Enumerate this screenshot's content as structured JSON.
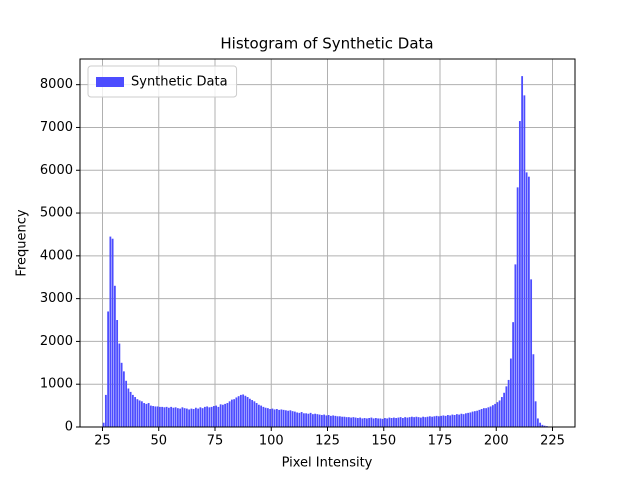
{
  "chart_data": {
    "type": "histogram",
    "title": "Histogram of Synthetic Data",
    "xlabel": "Pixel Intensity",
    "ylabel": "Frequency",
    "bins": [
      25,
      26,
      27,
      28,
      29,
      30,
      31,
      32,
      33,
      34,
      35,
      36,
      37,
      38,
      39,
      40,
      41,
      42,
      43,
      44,
      45,
      46,
      47,
      48,
      49,
      50,
      51,
      52,
      53,
      54,
      55,
      56,
      57,
      58,
      59,
      60,
      61,
      62,
      63,
      64,
      65,
      66,
      67,
      68,
      69,
      70,
      71,
      72,
      73,
      74,
      75,
      76,
      77,
      78,
      79,
      80,
      81,
      82,
      83,
      84,
      85,
      86,
      87,
      88,
      89,
      90,
      91,
      92,
      93,
      94,
      95,
      96,
      97,
      98,
      99,
      100,
      101,
      102,
      103,
      104,
      105,
      106,
      107,
      108,
      109,
      110,
      111,
      112,
      113,
      114,
      115,
      116,
      117,
      118,
      119,
      120,
      121,
      122,
      123,
      124,
      125,
      126,
      127,
      128,
      129,
      130,
      131,
      132,
      133,
      134,
      135,
      136,
      137,
      138,
      139,
      140,
      141,
      142,
      143,
      144,
      145,
      146,
      147,
      148,
      149,
      150,
      151,
      152,
      153,
      154,
      155,
      156,
      157,
      158,
      159,
      160,
      161,
      162,
      163,
      164,
      165,
      166,
      167,
      168,
      169,
      170,
      171,
      172,
      173,
      174,
      175,
      176,
      177,
      178,
      179,
      180,
      181,
      182,
      183,
      184,
      185,
      186,
      187,
      188,
      189,
      190,
      191,
      192,
      193,
      194,
      195,
      196,
      197,
      198,
      199,
      200,
      201,
      202,
      203,
      204,
      205,
      206,
      207,
      208,
      209,
      210,
      211,
      212,
      213,
      214,
      215,
      216,
      217,
      218,
      219,
      220,
      221,
      222,
      223,
      224,
      225,
      226,
      227,
      228
    ],
    "series": [
      {
        "name": "Synthetic Data",
        "color": "#4d4dff",
        "values": [
          100,
          750,
          2700,
          4450,
          4400,
          3300,
          2500,
          1950,
          1500,
          1300,
          1080,
          900,
          820,
          750,
          700,
          650,
          620,
          600,
          560,
          540,
          560,
          500,
          490,
          480,
          480,
          470,
          470,
          460,
          470,
          450,
          470,
          450,
          460,
          440,
          430,
          460,
          440,
          430,
          410,
          430,
          420,
          450,
          430,
          460,
          440,
          470,
          480,
          460,
          470,
          490,
          500,
          470,
          530,
          520,
          540,
          560,
          600,
          640,
          650,
          690,
          720,
          750,
          760,
          730,
          700,
          660,
          630,
          600,
          560,
          520,
          500,
          470,
          450,
          440,
          420,
          430,
          410,
          420,
          400,
          410,
          400,
          390,
          380,
          390,
          370,
          360,
          340,
          330,
          350,
          320,
          320,
          310,
          330,
          300,
          310,
          300,
          290,
          280,
          290,
          270,
          280,
          260,
          270,
          260,
          250,
          250,
          240,
          240,
          230,
          230,
          220,
          230,
          220,
          210,
          220,
          200,
          210,
          200,
          210,
          220,
          200,
          210,
          200,
          200,
          190,
          210,
          200,
          220,
          210,
          220,
          210,
          220,
          230,
          210,
          230,
          220,
          230,
          240,
          230,
          240,
          230,
          220,
          240,
          230,
          240,
          250,
          240,
          250,
          260,
          250,
          260,
          270,
          260,
          280,
          270,
          290,
          280,
          300,
          290,
          310,
          300,
          320,
          330,
          340,
          360,
          370,
          380,
          400,
          420,
          440,
          440,
          460,
          480,
          510,
          540,
          580,
          620,
          700,
          800,
          950,
          1100,
          1600,
          2450,
          3800,
          5600,
          7150,
          8200,
          7750,
          5950,
          5850,
          3450,
          1700,
          600,
          200,
          100,
          50,
          30,
          20,
          10,
          10,
          5,
          5,
          5
        ]
      }
    ],
    "xlim": [
      15,
      235
    ],
    "ylim": [
      0,
      8600
    ],
    "xticks": [
      25,
      50,
      75,
      100,
      125,
      150,
      175,
      200,
      225
    ],
    "yticks": [
      0,
      1000,
      2000,
      3000,
      4000,
      5000,
      6000,
      7000,
      8000
    ],
    "grid": true,
    "legend": "upper left"
  }
}
